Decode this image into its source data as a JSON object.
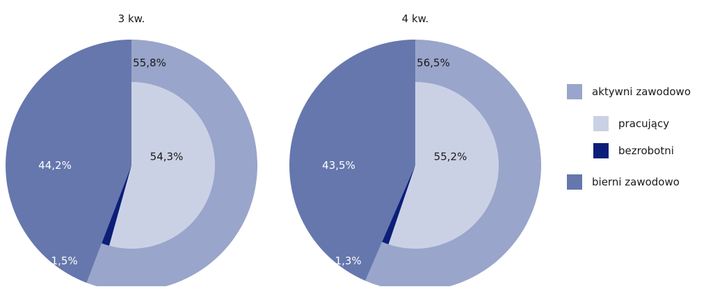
{
  "chart_data": [
    {
      "type": "pie",
      "title": "3 kw.",
      "outer_ring": [
        {
          "name": "aktywni zawodowo",
          "label": "55,8%",
          "value": 55.8
        },
        {
          "name": "bierni zawodowo",
          "label": "44,2%",
          "value": 44.2
        }
      ],
      "inner_pie": [
        {
          "name": "pracujący",
          "label": "54,3%",
          "value": 54.3
        },
        {
          "name": "bezrobotni",
          "label": "1,5%",
          "value": 1.5
        }
      ]
    },
    {
      "type": "pie",
      "title": "4 kw.",
      "outer_ring": [
        {
          "name": "aktywni zawodowo",
          "label": "56,5%",
          "value": 56.5
        },
        {
          "name": "bierni zawodowo",
          "label": "43,5%",
          "value": 43.5
        }
      ],
      "inner_pie": [
        {
          "name": "pracujący",
          "label": "55,2%",
          "value": 55.2
        },
        {
          "name": "bezrobotni",
          "label": "1,3%",
          "value": 1.3
        }
      ]
    }
  ],
  "legend": [
    {
      "label": "aktywni zawodowo",
      "color": "#99a5ca",
      "level": "outer"
    },
    {
      "label": "pracujący",
      "color": "#cbd1e5",
      "level": "inner"
    },
    {
      "label": "bezrobotni",
      "color": "#0b1f78",
      "level": "inner"
    },
    {
      "label": "bierni zawodowo",
      "color": "#6677ad",
      "level": "outer"
    }
  ],
  "colors": {
    "aktywni zawodowo": "#99a5ca",
    "pracujący": "#cbd1e5",
    "bezrobotni": "#0b1f78",
    "bierni zawodowo": "#6677ad",
    "label_dark": "#1a1a1a",
    "label_light": "#ffffff"
  }
}
